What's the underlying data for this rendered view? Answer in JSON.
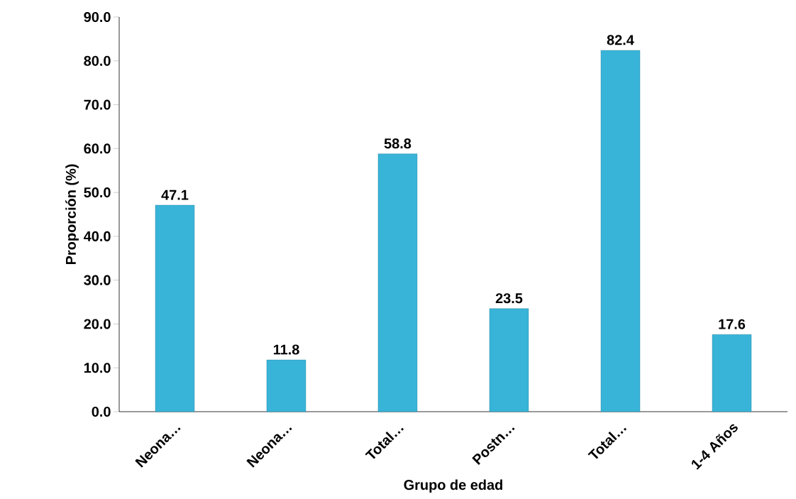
{
  "chart_data": {
    "type": "bar",
    "xlabel": "Grupo de edad",
    "ylabel": "Proporción (%)",
    "categories": [
      "Neona…",
      "Neona…",
      "Total…",
      "Postn…",
      "Total…",
      "1-4 Años"
    ],
    "values": [
      47.1,
      11.8,
      58.8,
      23.5,
      82.4,
      17.6
    ],
    "color": "#38b4d8",
    "ylim": [
      0,
      90
    ],
    "yticks": [
      {
        "value": 0,
        "label": "0.0"
      },
      {
        "value": 10,
        "label": "10.0"
      },
      {
        "value": 20,
        "label": "20.0"
      },
      {
        "value": 30,
        "label": "30.0"
      },
      {
        "value": 40,
        "label": "40.0"
      },
      {
        "value": 50,
        "label": "50.0"
      },
      {
        "value": 60,
        "label": "60.0"
      },
      {
        "value": 70,
        "label": "70.0"
      },
      {
        "value": 80,
        "label": "80.0"
      },
      {
        "value": 90,
        "label": "90.0"
      }
    ],
    "data_labels": true
  }
}
